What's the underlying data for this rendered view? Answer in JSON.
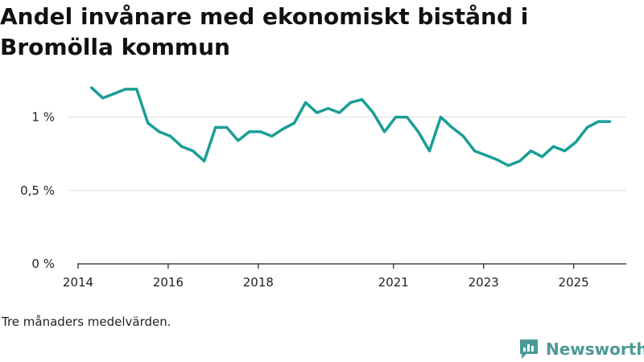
{
  "header": {
    "title": "Andel invånare med ekonomiskt bistånd i Bromölla kommun"
  },
  "footer": {
    "caption": "Tre månaders medelvärden.",
    "brand": "Newsworthy"
  },
  "colors": {
    "line": "#1a9e96",
    "grid": "#dddddd",
    "axis": "#222222",
    "brand": "#4c9a96"
  },
  "chart_data": {
    "type": "line",
    "title": "Andel invånare med ekonomiskt bistånd i Bromölla kommun",
    "xlabel": "",
    "ylabel": "",
    "ylim": [
      0,
      1.25
    ],
    "y_ticks": [
      {
        "value": 0,
        "label": "0 %"
      },
      {
        "value": 0.5,
        "label": "0,5 %"
      },
      {
        "value": 1,
        "label": "1 %"
      }
    ],
    "x_ticks": [
      {
        "value": 2014,
        "label": "2014"
      },
      {
        "value": 2016,
        "label": "2016"
      },
      {
        "value": 2018,
        "label": "2018"
      },
      {
        "value": 2021,
        "label": "2021"
      },
      {
        "value": 2023,
        "label": "2023"
      },
      {
        "value": 2025,
        "label": "2025"
      }
    ],
    "xlim": [
      2014,
      2026.4
    ],
    "series": [
      {
        "name": "Andel invånare med ekonomiskt bistånd",
        "x": [
          2014.3,
          2014.55,
          2014.8,
          2015.05,
          2015.3,
          2015.55,
          2015.8,
          2016.05,
          2016.3,
          2016.55,
          2016.8,
          2017.05,
          2017.3,
          2017.55,
          2017.8,
          2018.05,
          2018.3,
          2018.55,
          2018.8,
          2019.05,
          2019.3,
          2019.55,
          2019.8,
          2020.05,
          2020.3,
          2020.55,
          2020.8,
          2021.05,
          2021.3,
          2021.55,
          2021.8,
          2022.05,
          2022.3,
          2022.55,
          2022.8,
          2023.05,
          2023.3,
          2023.55,
          2023.8,
          2024.05,
          2024.3,
          2024.55,
          2024.8,
          2025.05,
          2025.3,
          2025.55,
          2025.8
        ],
        "values": [
          1.2,
          1.13,
          1.16,
          1.19,
          1.19,
          0.96,
          0.9,
          0.87,
          0.8,
          0.77,
          0.7,
          0.93,
          0.93,
          0.84,
          0.9,
          0.9,
          0.87,
          0.92,
          0.96,
          1.1,
          1.03,
          1.06,
          1.03,
          1.1,
          1.12,
          1.03,
          0.9,
          1.0,
          1.0,
          0.9,
          0.77,
          1.0,
          0.93,
          0.87,
          0.77,
          0.74,
          0.71,
          0.67,
          0.7,
          0.77,
          0.73,
          0.8,
          0.77,
          0.83,
          0.93,
          0.97,
          0.97
        ]
      }
    ]
  }
}
